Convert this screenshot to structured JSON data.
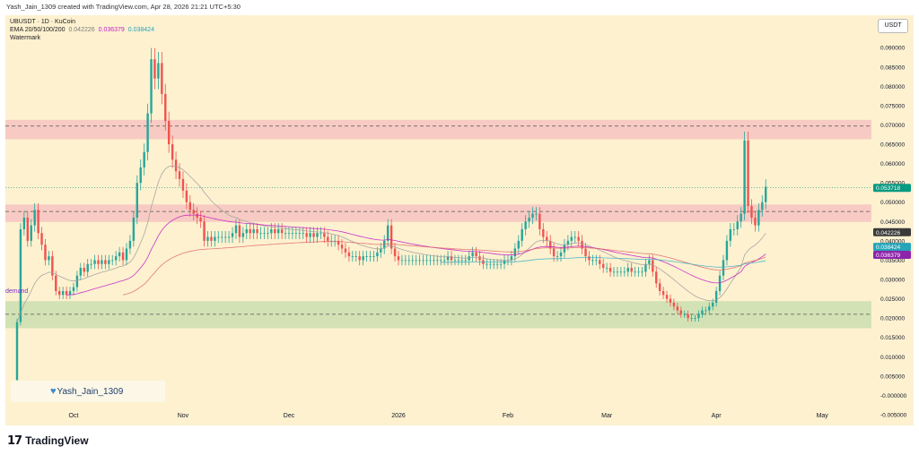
{
  "caption": "Yash_Jain_1309 created with TradingView.com, Apr 28, 2026 21:21 UTC+5:30",
  "legend": {
    "symbol_line": "UBUSDT · 1D · KuCoin",
    "ema_label": "EMA 20/50/100/200",
    "ema_values": [
      {
        "value": "0.042226",
        "color": "#7a7a7a"
      },
      {
        "value": "0.036379",
        "color": "#c21fc6"
      },
      {
        "value": "0.038424",
        "color": "#26a4b8"
      }
    ],
    "watermark_label": "Watermark"
  },
  "unit_label": "USDT",
  "zone_label": "demand",
  "watermark_text": "Yash_Jain_1309",
  "footer_logo_mark": "17",
  "footer_logo_text": "TradingView",
  "colors": {
    "background": "#fdf1d0",
    "up": "#26a69a",
    "down": "#ef5350",
    "supply_zone": "#f2a6b6",
    "demand_zone": "#a9d49a",
    "ema20": "#9e9e9e",
    "ema50": "#c51fc6",
    "ema100": "#e06b6b",
    "ema200": "#3fb1c3",
    "price_badge": "#089981"
  },
  "chart_data": {
    "type": "candlestick",
    "symbol": "UBUSDT",
    "interval": "1D",
    "exchange": "KuCoin",
    "ylim": [
      -0.005,
      0.097
    ],
    "y_ticks": [
      "0.095000",
      "0.090000",
      "0.085000",
      "0.080000",
      "0.075000",
      "0.070000",
      "0.065000",
      "0.060000",
      "0.055000",
      "0.050000",
      "0.045000",
      "0.040000",
      "0.035000",
      "0.030000",
      "0.025000",
      "0.020000",
      "0.015000",
      "0.010000",
      "0.005000",
      "-0.000000",
      "-0.005000"
    ],
    "x_ticks": [
      "Oct",
      "Nov",
      "Dec",
      "2026",
      "Feb",
      "Mar",
      "Apr",
      "May"
    ],
    "x_tick_days": [
      16,
      47,
      77,
      108,
      139,
      167,
      198,
      228
    ],
    "price_labels": [
      {
        "text": "0.053718",
        "value": 0.053718,
        "bg": "#089981",
        "fg": "#ffffff"
      },
      {
        "text": "0.042226",
        "value": 0.042226,
        "bg": "#3a3a3a",
        "fg": "#ffffff"
      },
      {
        "text": "0.038424",
        "value": 0.038424,
        "bg": "#26a4b8",
        "fg": "#ffffff"
      },
      {
        "text": "0.036379",
        "value": 0.036379,
        "bg": "#8e24aa",
        "fg": "#ffffff"
      }
    ],
    "zones": [
      {
        "name": "supply-upper",
        "low": 0.0663,
        "high": 0.0713,
        "mid": 0.0697,
        "color": "#f2a6b6"
      },
      {
        "name": "supply-lower",
        "low": 0.0449,
        "high": 0.0494,
        "mid": 0.0476,
        "color": "#f2a6b6"
      },
      {
        "name": "demand",
        "low": 0.0174,
        "high": 0.0244,
        "mid": 0.021,
        "color": "#a9d49a"
      }
    ],
    "current_price": 0.053718,
    "closes": [
      0.019,
      0.043,
      0.046,
      0.04,
      0.044,
      0.048,
      0.042,
      0.039,
      0.035,
      0.036,
      0.031,
      0.027,
      0.026,
      0.027,
      0.026,
      0.027,
      0.028,
      0.031,
      0.033,
      0.032,
      0.034,
      0.034,
      0.035,
      0.034,
      0.035,
      0.034,
      0.035,
      0.035,
      0.036,
      0.037,
      0.035,
      0.038,
      0.04,
      0.046,
      0.055,
      0.059,
      0.063,
      0.073,
      0.087,
      0.082,
      0.086,
      0.078,
      0.071,
      0.065,
      0.061,
      0.058,
      0.056,
      0.053,
      0.05,
      0.048,
      0.047,
      0.046,
      0.045,
      0.04,
      0.041,
      0.04,
      0.041,
      0.041,
      0.041,
      0.041,
      0.041,
      0.042,
      0.044,
      0.041,
      0.042,
      0.043,
      0.042,
      0.043,
      0.042,
      0.042,
      0.042,
      0.042,
      0.043,
      0.042,
      0.043,
      0.042,
      0.042,
      0.042,
      0.042,
      0.042,
      0.042,
      0.042,
      0.041,
      0.042,
      0.041,
      0.042,
      0.042,
      0.041,
      0.04,
      0.04,
      0.04,
      0.039,
      0.038,
      0.037,
      0.036,
      0.036,
      0.036,
      0.035,
      0.036,
      0.036,
      0.036,
      0.036,
      0.037,
      0.038,
      0.04,
      0.044,
      0.038,
      0.036,
      0.035,
      0.035,
      0.035,
      0.035,
      0.035,
      0.035,
      0.035,
      0.035,
      0.035,
      0.035,
      0.035,
      0.035,
      0.035,
      0.035,
      0.036,
      0.035,
      0.035,
      0.035,
      0.035,
      0.035,
      0.036,
      0.037,
      0.036,
      0.035,
      0.034,
      0.034,
      0.034,
      0.034,
      0.034,
      0.034,
      0.035,
      0.035,
      0.036,
      0.038,
      0.04,
      0.043,
      0.045,
      0.046,
      0.047,
      0.047,
      0.043,
      0.041,
      0.04,
      0.038,
      0.036,
      0.036,
      0.037,
      0.039,
      0.04,
      0.041,
      0.041,
      0.04,
      0.038,
      0.036,
      0.035,
      0.035,
      0.035,
      0.034,
      0.033,
      0.033,
      0.032,
      0.032,
      0.032,
      0.032,
      0.032,
      0.033,
      0.032,
      0.032,
      0.032,
      0.032,
      0.034,
      0.035,
      0.032,
      0.029,
      0.027,
      0.026,
      0.025,
      0.024,
      0.023,
      0.022,
      0.021,
      0.021,
      0.02,
      0.02,
      0.02,
      0.021,
      0.022,
      0.022,
      0.023,
      0.024,
      0.027,
      0.031,
      0.035,
      0.04,
      0.043,
      0.043,
      0.045,
      0.047,
      0.066,
      0.049,
      0.046,
      0.044,
      0.048,
      0.05,
      0.054
    ]
  }
}
